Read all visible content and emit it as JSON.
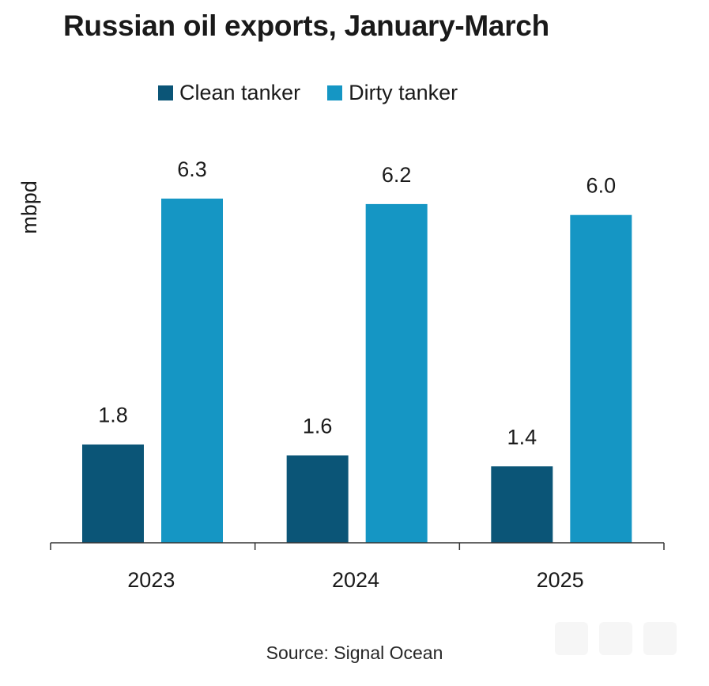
{
  "title": "Russian oil exports, January-March",
  "source": "Source: Signal Ocean",
  "colors": {
    "clean": "#0b5577",
    "dirty": "#1596c4",
    "axis": "#333333"
  },
  "chart_data": {
    "type": "bar",
    "title": "Russian oil exports, January-March",
    "xlabel": "",
    "ylabel": "mbpd",
    "categories": [
      "2023",
      "2024",
      "2025"
    ],
    "series": [
      {
        "name": "Clean tanker",
        "values": [
          1.8,
          1.6,
          1.4
        ],
        "labels": [
          "1.8",
          "1.6",
          "1.4"
        ],
        "color": "#0b5577"
      },
      {
        "name": "Dirty tanker",
        "values": [
          6.3,
          6.2,
          6.0
        ],
        "labels": [
          "6.3",
          "6.2",
          "6.0"
        ],
        "color": "#1596c4"
      }
    ],
    "ylim": [
      0,
      6.3
    ],
    "grid": false,
    "legend": "top"
  }
}
